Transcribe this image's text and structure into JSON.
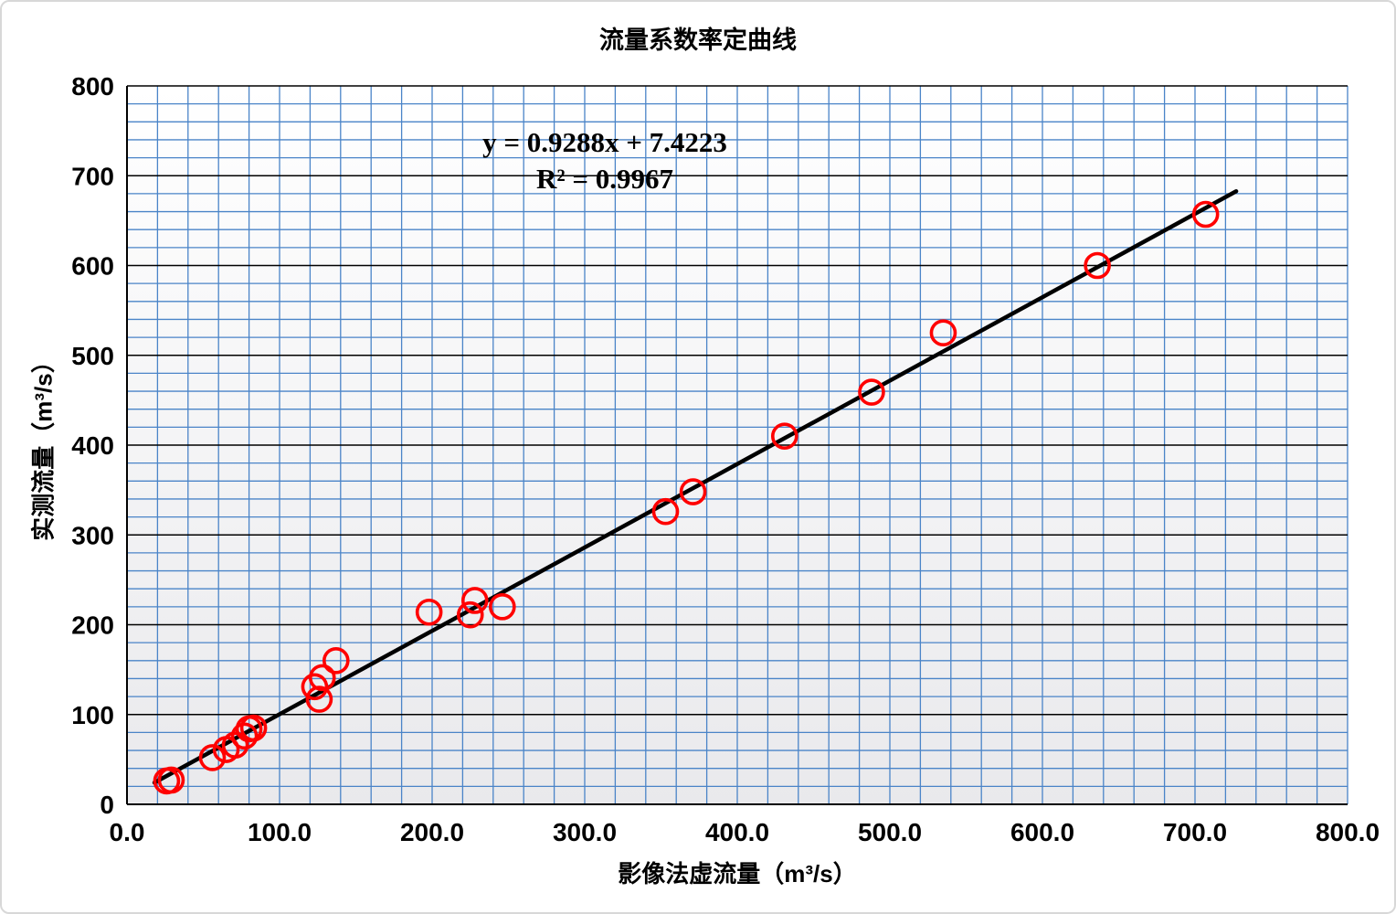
{
  "chart_data": {
    "type": "scatter",
    "title": "流量系数率定曲线",
    "xlabel": "影像法虚流量（m³/s）",
    "ylabel": "实测流量（m³/s）",
    "xlim": [
      0,
      800
    ],
    "ylim": [
      0,
      800
    ],
    "major_step": 100,
    "minor_step": 20,
    "x_tick_labels": [
      "0.0",
      "100.0",
      "200.0",
      "300.0",
      "400.0",
      "500.0",
      "600.0",
      "700.0",
      "800.0"
    ],
    "y_tick_labels": [
      "0",
      "100",
      "200",
      "300",
      "400",
      "500",
      "600",
      "700",
      "800"
    ],
    "grid": "minor blue both directions, major black horizontal only",
    "legend_position": "none",
    "points": [
      [
        26,
        26
      ],
      [
        29,
        27
      ],
      [
        56,
        52
      ],
      [
        65,
        61
      ],
      [
        71,
        66
      ],
      [
        77,
        76
      ],
      [
        80,
        84
      ],
      [
        83,
        85
      ],
      [
        123,
        131
      ],
      [
        126,
        117
      ],
      [
        128,
        141
      ],
      [
        137,
        160
      ],
      [
        198,
        214
      ],
      [
        225,
        211
      ],
      [
        228,
        227
      ],
      [
        246,
        220
      ],
      [
        353,
        326
      ],
      [
        371,
        348
      ],
      [
        431,
        410
      ],
      [
        488,
        459
      ],
      [
        535,
        525
      ],
      [
        636,
        600
      ],
      [
        707,
        657
      ]
    ],
    "trendline": {
      "slope": 0.9288,
      "intercept": 7.4223,
      "x_start": 18,
      "x_end": 727,
      "equation_label": "y = 0.9288x + 7.4223",
      "r_squared_label": "R² = 0.9967"
    },
    "colors": {
      "minor_grid": "#4a84c8",
      "major_grid": "#000000",
      "axis_line": "#000000",
      "marker_stroke": "#ff0000",
      "trend_line": "#000000",
      "plot_bg_top": "#ffffff",
      "plot_bg_bottom": "#e9e9ec"
    }
  }
}
